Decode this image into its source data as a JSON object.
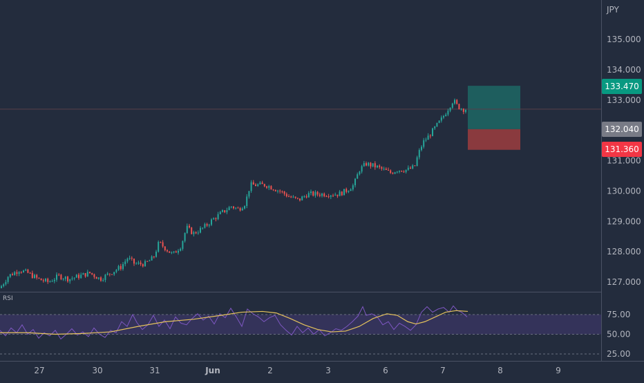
{
  "currency_label": "JPY",
  "price_axis": {
    "ticks": [
      "135.000",
      "134.000",
      "133.000",
      "132.000",
      "131.000",
      "130.000",
      "129.000",
      "128.000",
      "127.000"
    ],
    "tick_values": [
      135,
      134,
      133,
      132,
      131,
      130,
      129,
      128,
      127
    ]
  },
  "rsi_axis": {
    "ticks": [
      "75.00",
      "50.00",
      "25.00"
    ],
    "tick_values": [
      75,
      50,
      25
    ]
  },
  "time_axis": {
    "ticks": [
      "27",
      "30",
      "31",
      "Jun",
      "2",
      "3",
      "6",
      "7",
      "8",
      "9"
    ]
  },
  "labels": {
    "target": "133.470",
    "current": "132.040",
    "stop": "131.360"
  },
  "indicator_name": "RSI",
  "colors": {
    "background": "#232c3d",
    "bull": "#26a69a",
    "bear": "#ef5350",
    "target_zone": "#1e5e5e",
    "stop_zone": "#8a3a3e",
    "rsi_line": "#7e57c2",
    "rsi_ma": "#e6c35c",
    "rsi_band": "#34335a",
    "target_label": "#089981",
    "current_label": "#787b86",
    "stop_label": "#f23645"
  },
  "chart_data": {
    "type": "candlestick",
    "instrument_quote": "JPY",
    "price_range": [
      126.7,
      135.7
    ],
    "rsi_range": [
      25,
      90
    ],
    "close_path": [
      [
        0,
        126.8
      ],
      [
        12,
        127.2
      ],
      [
        28,
        127.4
      ],
      [
        40,
        127.3
      ],
      [
        55,
        127.1
      ],
      [
        70,
        127.0
      ],
      [
        85,
        127.2
      ],
      [
        100,
        127.1
      ],
      [
        115,
        127.2
      ],
      [
        130,
        127.3
      ],
      [
        145,
        127.1
      ],
      [
        160,
        127.3
      ],
      [
        175,
        127.5
      ],
      [
        185,
        127.8
      ],
      [
        195,
        127.6
      ],
      [
        210,
        127.6
      ],
      [
        222,
        127.8
      ],
      [
        230,
        128.3
      ],
      [
        240,
        128.1
      ],
      [
        250,
        127.9
      ],
      [
        262,
        128.2
      ],
      [
        270,
        128.8
      ],
      [
        280,
        128.6
      ],
      [
        295,
        128.8
      ],
      [
        310,
        129.1
      ],
      [
        322,
        129.3
      ],
      [
        335,
        129.5
      ],
      [
        345,
        129.4
      ],
      [
        355,
        129.6
      ],
      [
        362,
        130.2
      ],
      [
        372,
        130.2
      ],
      [
        385,
        130.2
      ],
      [
        395,
        130.1
      ],
      [
        405,
        130.0
      ],
      [
        420,
        129.8
      ],
      [
        432,
        129.7
      ],
      [
        445,
        129.9
      ],
      [
        460,
        129.9
      ],
      [
        475,
        129.9
      ],
      [
        490,
        129.9
      ],
      [
        500,
        130.0
      ],
      [
        512,
        130.2
      ],
      [
        520,
        130.7
      ],
      [
        530,
        130.9
      ],
      [
        545,
        130.8
      ],
      [
        555,
        130.7
      ],
      [
        565,
        130.6
      ],
      [
        575,
        130.7
      ],
      [
        590,
        130.7
      ],
      [
        600,
        130.8
      ],
      [
        605,
        131.2
      ],
      [
        612,
        131.6
      ],
      [
        620,
        131.8
      ],
      [
        630,
        132.1
      ],
      [
        640,
        132.4
      ],
      [
        648,
        132.7
      ],
      [
        656,
        133.0
      ],
      [
        662,
        132.8
      ],
      [
        670,
        132.7
      ],
      [
        677,
        132.7
      ]
    ],
    "rsi_path": [
      [
        0,
        55
      ],
      [
        8,
        48
      ],
      [
        16,
        58
      ],
      [
        24,
        52
      ],
      [
        32,
        62
      ],
      [
        40,
        50
      ],
      [
        48,
        56
      ],
      [
        56,
        45
      ],
      [
        64,
        52
      ],
      [
        72,
        48
      ],
      [
        80,
        55
      ],
      [
        88,
        44
      ],
      [
        96,
        50
      ],
      [
        104,
        57
      ],
      [
        112,
        49
      ],
      [
        120,
        53
      ],
      [
        128,
        47
      ],
      [
        136,
        58
      ],
      [
        144,
        50
      ],
      [
        152,
        46
      ],
      [
        160,
        55
      ],
      [
        168,
        52
      ],
      [
        176,
        66
      ],
      [
        184,
        60
      ],
      [
        192,
        75
      ],
      [
        198,
        65
      ],
      [
        206,
        56
      ],
      [
        214,
        62
      ],
      [
        222,
        74
      ],
      [
        230,
        60
      ],
      [
        238,
        68
      ],
      [
        246,
        57
      ],
      [
        254,
        72
      ],
      [
        262,
        64
      ],
      [
        270,
        62
      ],
      [
        278,
        70
      ],
      [
        286,
        76
      ],
      [
        294,
        68
      ],
      [
        302,
        73
      ],
      [
        310,
        63
      ],
      [
        318,
        76
      ],
      [
        326,
        71
      ],
      [
        334,
        83
      ],
      [
        342,
        72
      ],
      [
        350,
        60
      ],
      [
        358,
        82
      ],
      [
        366,
        76
      ],
      [
        374,
        72
      ],
      [
        382,
        66
      ],
      [
        390,
        71
      ],
      [
        398,
        74
      ],
      [
        406,
        62
      ],
      [
        414,
        55
      ],
      [
        422,
        49
      ],
      [
        430,
        60
      ],
      [
        438,
        52
      ],
      [
        446,
        58
      ],
      [
        454,
        50
      ],
      [
        462,
        56
      ],
      [
        470,
        48
      ],
      [
        478,
        52
      ],
      [
        486,
        57
      ],
      [
        494,
        55
      ],
      [
        502,
        60
      ],
      [
        510,
        66
      ],
      [
        518,
        73
      ],
      [
        525,
        85
      ],
      [
        530,
        74
      ],
      [
        538,
        76
      ],
      [
        546,
        72
      ],
      [
        554,
        62
      ],
      [
        562,
        66
      ],
      [
        570,
        56
      ],
      [
        578,
        64
      ],
      [
        586,
        60
      ],
      [
        594,
        55
      ],
      [
        602,
        62
      ],
      [
        610,
        78
      ],
      [
        618,
        85
      ],
      [
        626,
        78
      ],
      [
        634,
        82
      ],
      [
        642,
        84
      ],
      [
        650,
        78
      ],
      [
        656,
        86
      ],
      [
        662,
        80
      ],
      [
        668,
        78
      ],
      [
        676,
        72
      ]
    ],
    "rsi_ma_path": [
      [
        0,
        52
      ],
      [
        40,
        52
      ],
      [
        80,
        50
      ],
      [
        120,
        51
      ],
      [
        160,
        53
      ],
      [
        200,
        60
      ],
      [
        240,
        66
      ],
      [
        280,
        69
      ],
      [
        320,
        74
      ],
      [
        350,
        78
      ],
      [
        380,
        79
      ],
      [
        400,
        77
      ],
      [
        420,
        70
      ],
      [
        440,
        62
      ],
      [
        460,
        56
      ],
      [
        480,
        53
      ],
      [
        500,
        54
      ],
      [
        520,
        60
      ],
      [
        540,
        70
      ],
      [
        560,
        76
      ],
      [
        575,
        74
      ],
      [
        590,
        66
      ],
      [
        602,
        63
      ],
      [
        615,
        66
      ],
      [
        630,
        72
      ],
      [
        645,
        78
      ],
      [
        660,
        80
      ],
      [
        677,
        79
      ]
    ],
    "trade_zones": [
      {
        "name": "target",
        "from": 132.04,
        "to": 133.47
      },
      {
        "name": "stop",
        "from": 131.36,
        "to": 132.04
      }
    ],
    "current_price_line": 132.7,
    "rsi_band": [
      50,
      75
    ],
    "rsi_levels": [
      25,
      50,
      75
    ]
  }
}
